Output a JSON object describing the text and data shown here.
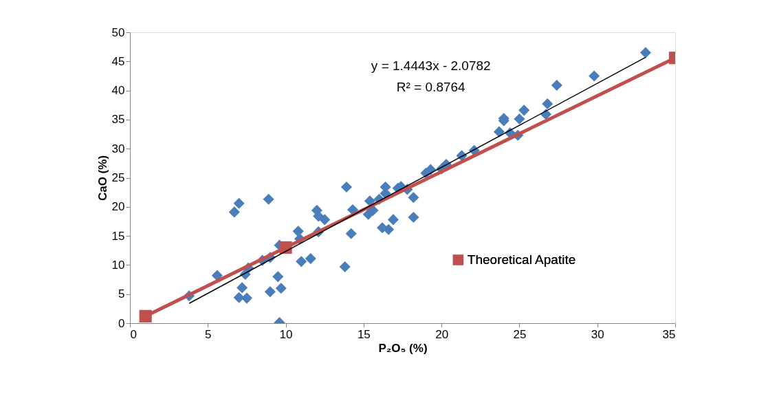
{
  "chart_data": {
    "type": "scatter",
    "xlabel": "P₂O₅ (%)",
    "ylabel": "CaO (%)",
    "xlim": [
      0,
      35
    ],
    "xticks": [
      0,
      5,
      10,
      15,
      20,
      25,
      30,
      35
    ],
    "ylim": [
      0,
      50
    ],
    "yticks": [
      0,
      5,
      10,
      15,
      20,
      25,
      30,
      35,
      40,
      45,
      50
    ],
    "grid": false,
    "legend": "right",
    "marker": "diamond",
    "series": [
      {
        "color": "#4a7ebb",
        "x": [
          3.8,
          5.6,
          6.7,
          7.0,
          7.0,
          7.2,
          7.5,
          7.4,
          7.6,
          8.9,
          8.5,
          9.0,
          9.0,
          9.5,
          9.6,
          9.7,
          9.6,
          10.8,
          10.9,
          11.0,
          11.6,
          12.0,
          12.1,
          12.1,
          12.5,
          13.9,
          13.8,
          14.3,
          14.2,
          15.3,
          15.4,
          15.6,
          16.0,
          16.2,
          16.4,
          16.4,
          16.6,
          16.9,
          17.2,
          17.4,
          17.8,
          18.2,
          18.2,
          19.0,
          19.3,
          20.0,
          20.3,
          21.3,
          22.1,
          23.7,
          24.0,
          24.0,
          24.4,
          24.9,
          25.0,
          25.3,
          26.7,
          26.8,
          27.4,
          29.8,
          33.1
        ],
        "values": [
          4.7,
          8.2,
          19.1,
          20.6,
          4.4,
          6.1,
          4.3,
          8.4,
          9.5,
          21.3,
          10.8,
          11.3,
          5.4,
          8.0,
          13.4,
          6.0,
          0.1,
          15.8,
          14.5,
          10.6,
          11.1,
          19.4,
          18.4,
          15.7,
          17.8,
          23.4,
          9.7,
          19.5,
          15.4,
          18.7,
          21.0,
          19.4,
          21.3,
          16.4,
          22.3,
          23.4,
          16.1,
          17.8,
          23.2,
          23.5,
          23.0,
          18.2,
          21.6,
          25.8,
          26.4,
          26.5,
          27.3,
          28.8,
          29.7,
          32.9,
          34.8,
          35.2,
          32.7,
          32.3,
          35.1,
          36.6,
          35.9,
          37.7,
          40.9,
          42.5,
          46.5
        ]
      },
      {
        "type": "line",
        "name": "Theoretical Apatite",
        "color": "#c0504d",
        "marker": "square",
        "x": [
          1,
          10,
          35
        ],
        "values": [
          1.2,
          13.0,
          45.6
        ]
      },
      {
        "type": "line",
        "color": "#000000",
        "marker": "none",
        "x": [
          3.8,
          33.1
        ],
        "values": [
          3.4,
          45.7
        ]
      }
    ],
    "annotations": [
      "y = 1.4443x - 2.0782",
      "R² = 0.8764"
    ]
  }
}
